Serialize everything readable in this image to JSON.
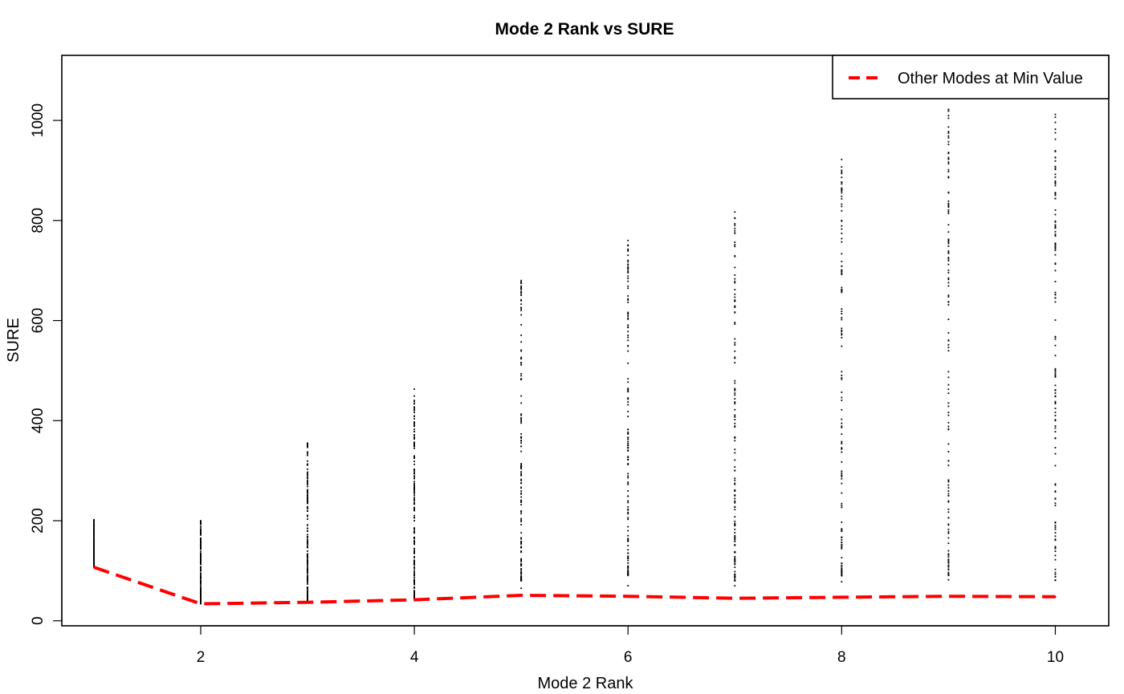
{
  "chart_data": {
    "type": "scatter",
    "title": "Mode 2 Rank vs SURE",
    "xlabel": "Mode 2 Rank",
    "ylabel": "SURE",
    "xlim": [
      0.7,
      10.5
    ],
    "ylim": [
      -10,
      1130
    ],
    "x_ticks": [
      2,
      4,
      6,
      8,
      10
    ],
    "y_ticks": [
      0,
      200,
      400,
      600,
      800,
      1000
    ],
    "grid": false,
    "legend_position": "top-right",
    "series": [
      {
        "name": "Other Modes at Min Value",
        "kind": "line",
        "style": "dashed",
        "color": "#ff0000",
        "x": [
          1,
          2,
          3,
          4,
          5,
          6,
          7,
          8,
          9,
          10
        ],
        "y": [
          107,
          34,
          37,
          42,
          51,
          49,
          45,
          47,
          49,
          48
        ]
      },
      {
        "kind": "points",
        "color": "#000000",
        "point_columns": [
          {
            "x": 1,
            "min": 108,
            "max": 202,
            "dense_min": 108,
            "dense_max": 202,
            "dense_count": 220,
            "sparse_count": 0
          },
          {
            "x": 2,
            "min": 34,
            "max": 200,
            "dense_min": 36,
            "dense_max": 200,
            "dense_count": 180,
            "sparse_count": 0
          },
          {
            "x": 3,
            "min": 38,
            "max": 355,
            "dense_min": 40,
            "dense_max": 330,
            "dense_count": 150,
            "sparse_count": 10
          },
          {
            "x": 4,
            "min": 43,
            "max": 463,
            "dense_min": 45,
            "dense_max": 415,
            "dense_count": 150,
            "sparse_count": 10
          },
          {
            "x": 5,
            "min": 65,
            "max": 680,
            "dense_min": 80,
            "dense_max": 610,
            "dense_count": 120,
            "sparse_count": 20
          },
          {
            "x": 6,
            "min": 70,
            "max": 760,
            "dense_min": 90,
            "dense_max": 640,
            "dense_count": 110,
            "sparse_count": 25
          },
          {
            "x": 7,
            "min": 70,
            "max": 817,
            "dense_min": 80,
            "dense_max": 500,
            "dense_count": 90,
            "sparse_count": 40
          },
          {
            "x": 8,
            "min": 78,
            "max": 922,
            "dense_min": 90,
            "dense_max": 650,
            "dense_count": 80,
            "sparse_count": 45
          },
          {
            "x": 9,
            "min": 82,
            "max": 1022,
            "dense_min": 90,
            "dense_max": 700,
            "dense_count": 80,
            "sparse_count": 50
          },
          {
            "x": 10,
            "min": 48,
            "max": 1012,
            "dense_min": 80,
            "dense_max": 650,
            "dense_count": 70,
            "sparse_count": 55
          }
        ]
      }
    ]
  }
}
